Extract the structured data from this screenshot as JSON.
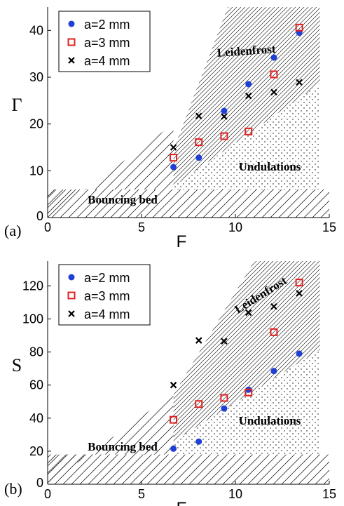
{
  "colors": {
    "series": [
      "#1f3fd6",
      "#e02020",
      "#000000"
    ],
    "axis": "#000000",
    "hatch": "#000000",
    "background": "#ffffff"
  },
  "chart_data": [
    {
      "type": "scatter",
      "panel_label": "(a)",
      "xlabel": "F",
      "ylabel": "Γ",
      "xlim": [
        0,
        15
      ],
      "ylim": [
        0,
        45
      ],
      "xticks": [
        0,
        5,
        10,
        15
      ],
      "yticks": [
        10,
        20,
        30,
        40
      ],
      "grid": false,
      "legend_position": "top-left",
      "region_labels": [
        "Leidenfrost",
        "Undulations",
        "Bouncing bed"
      ],
      "regions": {
        "upper_line": [
          [
            6.7,
            14.5
          ],
          [
            9.6,
            45
          ]
        ],
        "lower_line": [
          [
            6.7,
            6.7
          ],
          [
            15,
            30
          ]
        ],
        "left_line": [
          [
            0,
            0
          ],
          [
            6.7,
            20
          ]
        ],
        "bed_top": 6
      },
      "series": [
        {
          "name": "a=2 mm",
          "marker": "circle",
          "x": [
            6.7,
            8.05,
            9.4,
            10.7,
            12.05,
            13.4
          ],
          "y": [
            10.8,
            12.8,
            22.8,
            28.5,
            34.2,
            39.5
          ]
        },
        {
          "name": "a=3 mm",
          "marker": "square",
          "x": [
            6.7,
            8.05,
            9.4,
            10.7,
            12.05,
            13.4
          ],
          "y": [
            12.8,
            16.1,
            17.4,
            18.4,
            30.6,
            40.6
          ]
        },
        {
          "name": "a=4 mm",
          "marker": "cross",
          "x": [
            6.7,
            8.05,
            9.4,
            10.7,
            12.05,
            13.4
          ],
          "y": [
            15.0,
            21.7,
            21.6,
            26.0,
            26.8,
            28.9
          ]
        }
      ]
    },
    {
      "type": "scatter",
      "panel_label": "(b)",
      "xlabel": "F",
      "ylabel": "S",
      "xlim": [
        0,
        15
      ],
      "ylim": [
        0,
        135
      ],
      "xticks": [
        0,
        5,
        10,
        15
      ],
      "yticks": [
        20,
        40,
        60,
        80,
        100,
        120
      ],
      "grid": false,
      "legend_position": "top-left",
      "region_labels": [
        "Leidenfrost",
        "Undulations",
        "Bouncing bed"
      ],
      "regions": {
        "upper_line": [
          [
            6.7,
            54
          ],
          [
            11.0,
            135
          ]
        ],
        "lower_line": [
          [
            6.7,
            26
          ],
          [
            15,
            85
          ]
        ],
        "left_line": [
          [
            0,
            0
          ],
          [
            6.7,
            55
          ]
        ],
        "bed_top": 18
      },
      "series": [
        {
          "name": "a=2 mm",
          "marker": "circle",
          "x": [
            6.7,
            8.05,
            9.4,
            10.7,
            12.05,
            13.4
          ],
          "y": [
            21.5,
            25.8,
            45.8,
            57.2,
            68.5,
            79.0
          ]
        },
        {
          "name": "a=3 mm",
          "marker": "square",
          "x": [
            6.7,
            8.05,
            9.4,
            10.7,
            12.05,
            13.4
          ],
          "y": [
            39.0,
            48.5,
            52.2,
            55.5,
            92.0,
            122.0
          ]
        },
        {
          "name": "a=4 mm",
          "marker": "cross",
          "x": [
            6.7,
            8.05,
            9.4,
            10.7,
            12.05,
            13.4
          ],
          "y": [
            60.0,
            87.0,
            86.5,
            103.8,
            107.5,
            115.5
          ]
        }
      ]
    }
  ]
}
